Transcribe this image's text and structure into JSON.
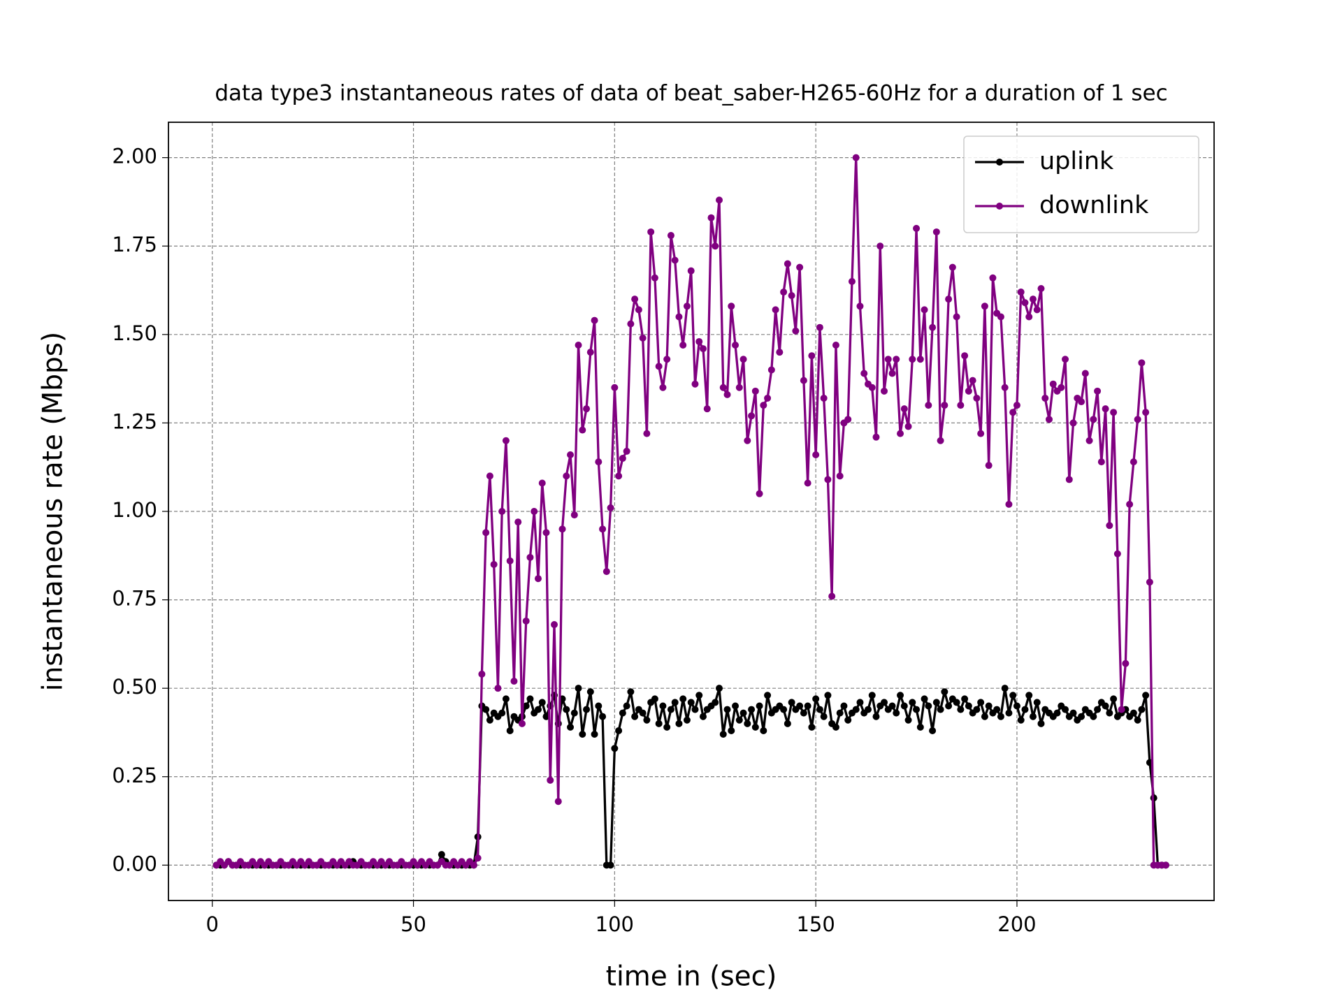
{
  "chart_data": {
    "type": "line",
    "title": "data type3 instantaneous rates of data of beat_saber-H265-60Hz for a duration of 1 sec",
    "xlabel": "time in (sec)",
    "ylabel": "instantaneous rate (Mbps)",
    "xlim": [
      -10.9,
      249.0
    ],
    "ylim": [
      -0.1,
      2.1
    ],
    "xticks": [
      0,
      50,
      100,
      150,
      200
    ],
    "yticks": [
      {
        "value": 0,
        "label": "0.00"
      },
      {
        "value": 0.25,
        "label": "0.25"
      },
      {
        "value": 0.5,
        "label": "0.50"
      },
      {
        "value": 0.75,
        "label": "0.75"
      },
      {
        "value": 1,
        "label": "1.00"
      },
      {
        "value": 1.25,
        "label": "1.25"
      },
      {
        "value": 1.5,
        "label": "1.50"
      },
      {
        "value": 1.75,
        "label": "1.75"
      },
      {
        "value": 2,
        "label": "2.00"
      }
    ],
    "grid": true,
    "legend": "upper right",
    "x": [
      1,
      2,
      3,
      4,
      5,
      6,
      7,
      8,
      9,
      10,
      11,
      12,
      13,
      14,
      15,
      16,
      17,
      18,
      19,
      20,
      21,
      22,
      23,
      24,
      25,
      26,
      27,
      28,
      29,
      30,
      31,
      32,
      33,
      34,
      35,
      36,
      37,
      38,
      39,
      40,
      41,
      42,
      43,
      44,
      45,
      46,
      47,
      48,
      49,
      50,
      51,
      52,
      53,
      54,
      55,
      56,
      57,
      58,
      59,
      60,
      61,
      62,
      63,
      64,
      65,
      66,
      67,
      68,
      69,
      70,
      71,
      72,
      73,
      74,
      75,
      76,
      77,
      78,
      79,
      80,
      81,
      82,
      83,
      84,
      85,
      86,
      87,
      88,
      89,
      90,
      91,
      92,
      93,
      94,
      95,
      96,
      97,
      98,
      99,
      100,
      101,
      102,
      103,
      104,
      105,
      106,
      107,
      108,
      109,
      110,
      111,
      112,
      113,
      114,
      115,
      116,
      117,
      118,
      119,
      120,
      121,
      122,
      123,
      124,
      125,
      126,
      127,
      128,
      129,
      130,
      131,
      132,
      133,
      134,
      135,
      136,
      137,
      138,
      139,
      140,
      141,
      142,
      143,
      144,
      145,
      146,
      147,
      148,
      149,
      150,
      151,
      152,
      153,
      154,
      155,
      156,
      157,
      158,
      159,
      160,
      161,
      162,
      163,
      164,
      165,
      166,
      167,
      168,
      169,
      170,
      171,
      172,
      173,
      174,
      175,
      176,
      177,
      178,
      179,
      180,
      181,
      182,
      183,
      184,
      185,
      186,
      187,
      188,
      189,
      190,
      191,
      192,
      193,
      194,
      195,
      196,
      197,
      198,
      199,
      200,
      201,
      202,
      203,
      204,
      205,
      206,
      207,
      208,
      209,
      210,
      211,
      212,
      213,
      214,
      215,
      216,
      217,
      218,
      219,
      220,
      221,
      222,
      223,
      224,
      225,
      226,
      227,
      228,
      229,
      230,
      231,
      232,
      233,
      234,
      235,
      236,
      237
    ],
    "series": [
      {
        "name": "uplink",
        "color": "#000000",
        "values": [
          0,
          0,
          0,
          0.01,
          0,
          0,
          0,
          0,
          0,
          0,
          0,
          0,
          0,
          0,
          0,
          0,
          0,
          0,
          0,
          0,
          0,
          0,
          0,
          0,
          0,
          0,
          0,
          0,
          0,
          0,
          0,
          0,
          0,
          0,
          0.01,
          0,
          0,
          0,
          0,
          0,
          0,
          0,
          0,
          0,
          0,
          0,
          0,
          0,
          0,
          0,
          0,
          0,
          0,
          0,
          0,
          0,
          0.03,
          0.01,
          0,
          0,
          0,
          0,
          0,
          0,
          0,
          0.08,
          0.45,
          0.44,
          0.41,
          0.43,
          0.42,
          0.43,
          0.47,
          0.38,
          0.42,
          0.41,
          0.42,
          0.45,
          0.47,
          0.43,
          0.44,
          0.46,
          0.42,
          0.45,
          0.48,
          0.4,
          0.47,
          0.44,
          0.39,
          0.43,
          0.5,
          0.37,
          0.44,
          0.49,
          0.37,
          0.45,
          0.42,
          0,
          0,
          0.33,
          0.38,
          0.43,
          0.45,
          0.49,
          0.42,
          0.44,
          0.43,
          0.41,
          0.46,
          0.47,
          0.4,
          0.45,
          0.39,
          0.44,
          0.46,
          0.4,
          0.47,
          0.41,
          0.46,
          0.44,
          0.48,
          0.42,
          0.44,
          0.45,
          0.46,
          0.5,
          0.37,
          0.44,
          0.38,
          0.45,
          0.41,
          0.43,
          0.4,
          0.44,
          0.39,
          0.45,
          0.38,
          0.48,
          0.43,
          0.44,
          0.45,
          0.44,
          0.4,
          0.46,
          0.44,
          0.45,
          0.43,
          0.45,
          0.39,
          0.47,
          0.44,
          0.42,
          0.48,
          0.4,
          0.39,
          0.43,
          0.45,
          0.41,
          0.43,
          0.44,
          0.46,
          0.43,
          0.44,
          0.48,
          0.42,
          0.45,
          0.46,
          0.44,
          0.45,
          0.43,
          0.48,
          0.45,
          0.41,
          0.46,
          0.44,
          0.39,
          0.47,
          0.45,
          0.38,
          0.46,
          0.44,
          0.49,
          0.45,
          0.47,
          0.46,
          0.44,
          0.47,
          0.45,
          0.43,
          0.44,
          0.46,
          0.42,
          0.45,
          0.43,
          0.44,
          0.42,
          0.5,
          0.43,
          0.48,
          0.45,
          0.41,
          0.44,
          0.48,
          0.42,
          0.46,
          0.4,
          0.44,
          0.43,
          0.42,
          0.43,
          0.45,
          0.44,
          0.42,
          0.43,
          0.41,
          0.42,
          0.44,
          0.43,
          0.42,
          0.44,
          0.46,
          0.45,
          0.43,
          0.47,
          0.42,
          0.43,
          0.44,
          0.42,
          0.43,
          0.41,
          0.44,
          0.48,
          0.29,
          0.19,
          0,
          0,
          0
        ]
      },
      {
        "name": "downlink",
        "color": "#800080",
        "values": [
          0,
          0.01,
          0,
          0.01,
          0,
          0,
          0.01,
          0,
          0,
          0.01,
          0,
          0.01,
          0,
          0.01,
          0,
          0,
          0.01,
          0,
          0,
          0.01,
          0,
          0.01,
          0,
          0.01,
          0,
          0,
          0.01,
          0,
          0,
          0.01,
          0,
          0.01,
          0,
          0.01,
          0,
          0,
          0.01,
          0,
          0,
          0.01,
          0,
          0.01,
          0,
          0.01,
          0,
          0,
          0.01,
          0,
          0,
          0.01,
          0,
          0.01,
          0,
          0.01,
          0,
          0,
          0.01,
          0,
          0,
          0.01,
          0,
          0.01,
          0,
          0.01,
          0,
          0.02,
          0.54,
          0.94,
          1.1,
          0.85,
          0.5,
          1.0,
          1.2,
          0.86,
          0.52,
          0.97,
          0.4,
          0.69,
          0.87,
          1.0,
          0.81,
          1.08,
          0.94,
          0.24,
          0.68,
          0.18,
          0.95,
          1.1,
          1.16,
          0.99,
          1.47,
          1.23,
          1.29,
          1.45,
          1.54,
          1.14,
          0.95,
          0.83,
          1.01,
          1.35,
          1.1,
          1.15,
          1.17,
          1.53,
          1.6,
          1.57,
          1.49,
          1.22,
          1.79,
          1.66,
          1.41,
          1.35,
          1.43,
          1.78,
          1.71,
          1.55,
          1.47,
          1.58,
          1.68,
          1.36,
          1.48,
          1.46,
          1.29,
          1.83,
          1.75,
          1.88,
          1.35,
          1.33,
          1.58,
          1.47,
          1.35,
          1.43,
          1.2,
          1.27,
          1.34,
          1.05,
          1.3,
          1.32,
          1.4,
          1.57,
          1.45,
          1.62,
          1.7,
          1.61,
          1.51,
          1.69,
          1.37,
          1.08,
          1.44,
          1.16,
          1.52,
          1.32,
          1.09,
          0.76,
          1.47,
          1.1,
          1.25,
          1.26,
          1.65,
          2.0,
          1.58,
          1.39,
          1.36,
          1.35,
          1.21,
          1.75,
          1.34,
          1.43,
          1.39,
          1.43,
          1.22,
          1.29,
          1.24,
          1.43,
          1.8,
          1.43,
          1.57,
          1.3,
          1.52,
          1.79,
          1.2,
          1.3,
          1.6,
          1.69,
          1.55,
          1.3,
          1.44,
          1.34,
          1.37,
          1.32,
          1.22,
          1.58,
          1.13,
          1.66,
          1.56,
          1.55,
          1.35,
          1.02,
          1.28,
          1.3,
          1.62,
          1.59,
          1.55,
          1.6,
          1.57,
          1.63,
          1.32,
          1.26,
          1.36,
          1.34,
          1.35,
          1.43,
          1.09,
          1.25,
          1.32,
          1.31,
          1.39,
          1.2,
          1.26,
          1.34,
          1.14,
          1.29,
          0.96,
          1.28,
          0.88,
          0.44,
          0.57,
          1.02,
          1.14,
          1.26,
          1.42,
          1.28,
          0.8,
          0,
          0,
          0,
          0
        ]
      }
    ]
  }
}
